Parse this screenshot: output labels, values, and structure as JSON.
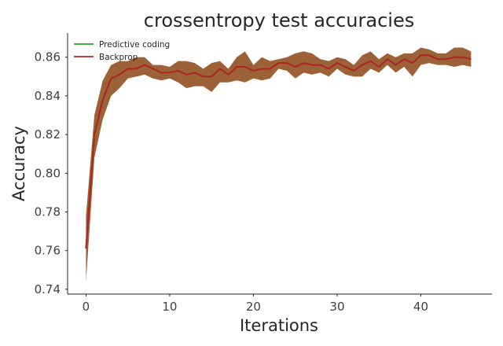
{
  "chart_data": {
    "type": "line",
    "title": "crossentropy test accuracies",
    "xlabel": "Iterations",
    "ylabel": "Accuracy",
    "xlim": [
      -2.2,
      48.5
    ],
    "ylim": [
      0.7375,
      0.8725
    ],
    "xticks": [
      0,
      10,
      20,
      30,
      40
    ],
    "yticks": [
      0.74,
      0.76,
      0.78,
      0.8,
      0.82,
      0.84,
      0.86
    ],
    "ytick_labels": [
      "0.74",
      "0.76",
      "0.78",
      "0.80",
      "0.82",
      "0.84",
      "0.86"
    ],
    "grid": false,
    "legend_position": "top-left",
    "series": [
      {
        "name": "Predictive coding",
        "color": "#2ca02c",
        "x": [
          0,
          1,
          2,
          3,
          4,
          5,
          6,
          7,
          8,
          9,
          10,
          11,
          12,
          13,
          14,
          15,
          16,
          17,
          18,
          19,
          20,
          21,
          22,
          23,
          24,
          25,
          26,
          27,
          28,
          29,
          30,
          31,
          32,
          33,
          34,
          35,
          36,
          37,
          38,
          39,
          40,
          41,
          42,
          43,
          44,
          45,
          46
        ],
        "values": [
          0.761,
          0.82,
          0.838,
          0.849,
          0.851,
          0.854,
          0.854,
          0.856,
          0.854,
          0.852,
          0.852,
          0.853,
          0.851,
          0.852,
          0.85,
          0.85,
          0.854,
          0.851,
          0.855,
          0.855,
          0.853,
          0.854,
          0.854,
          0.857,
          0.857,
          0.855,
          0.857,
          0.856,
          0.856,
          0.854,
          0.857,
          0.855,
          0.853,
          0.856,
          0.858,
          0.855,
          0.859,
          0.856,
          0.859,
          0.857,
          0.861,
          0.861,
          0.859,
          0.859,
          0.86,
          0.86,
          0.859
        ]
      },
      {
        "name": "Backprop",
        "color": "#b22222",
        "band_color": "#8b4513",
        "x": [
          0,
          1,
          2,
          3,
          4,
          5,
          6,
          7,
          8,
          9,
          10,
          11,
          12,
          13,
          14,
          15,
          16,
          17,
          18,
          19,
          20,
          21,
          22,
          23,
          24,
          25,
          26,
          27,
          28,
          29,
          30,
          31,
          32,
          33,
          34,
          35,
          36,
          37,
          38,
          39,
          40,
          41,
          42,
          43,
          44,
          45,
          46
        ],
        "values": [
          0.761,
          0.82,
          0.838,
          0.849,
          0.851,
          0.854,
          0.854,
          0.856,
          0.854,
          0.852,
          0.852,
          0.853,
          0.851,
          0.852,
          0.85,
          0.85,
          0.854,
          0.851,
          0.855,
          0.855,
          0.853,
          0.854,
          0.854,
          0.857,
          0.857,
          0.855,
          0.857,
          0.856,
          0.856,
          0.854,
          0.857,
          0.855,
          0.853,
          0.856,
          0.858,
          0.855,
          0.859,
          0.856,
          0.859,
          0.857,
          0.861,
          0.861,
          0.859,
          0.859,
          0.86,
          0.86,
          0.859
        ],
        "upper": [
          0.778,
          0.83,
          0.848,
          0.856,
          0.858,
          0.858,
          0.86,
          0.86,
          0.856,
          0.856,
          0.855,
          0.858,
          0.858,
          0.857,
          0.854,
          0.857,
          0.858,
          0.854,
          0.86,
          0.863,
          0.856,
          0.86,
          0.858,
          0.859,
          0.86,
          0.862,
          0.863,
          0.862,
          0.859,
          0.858,
          0.86,
          0.859,
          0.856,
          0.861,
          0.863,
          0.859,
          0.862,
          0.86,
          0.862,
          0.862,
          0.865,
          0.864,
          0.862,
          0.862,
          0.865,
          0.865,
          0.863
        ],
        "lower": [
          0.744,
          0.808,
          0.828,
          0.84,
          0.844,
          0.849,
          0.85,
          0.851,
          0.849,
          0.848,
          0.849,
          0.847,
          0.844,
          0.845,
          0.845,
          0.842,
          0.847,
          0.847,
          0.848,
          0.847,
          0.849,
          0.848,
          0.849,
          0.854,
          0.853,
          0.849,
          0.852,
          0.851,
          0.852,
          0.85,
          0.854,
          0.851,
          0.85,
          0.85,
          0.854,
          0.852,
          0.856,
          0.852,
          0.855,
          0.85,
          0.856,
          0.857,
          0.856,
          0.856,
          0.855,
          0.856,
          0.855
        ]
      }
    ]
  }
}
